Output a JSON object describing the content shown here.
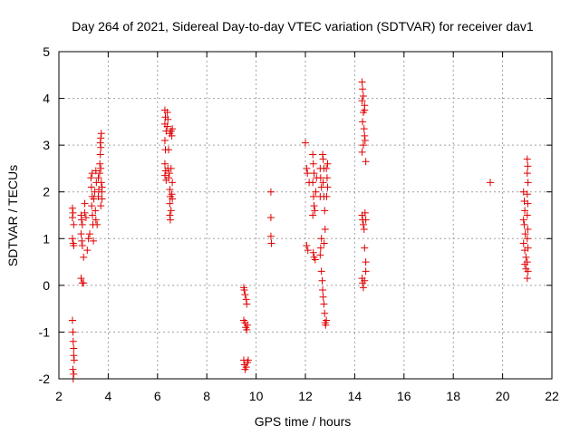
{
  "chart_data": {
    "type": "scatter",
    "title": "Day 264 of 2021, Sidereal Day-to-day VTEC variation (SDTVAR) for receiver dav1",
    "xlabel": "GPS time / hours",
    "ylabel": "SDTVAR / TECUs",
    "xlim": [
      2,
      22
    ],
    "ylim": [
      -2,
      5
    ],
    "xticks": [
      2,
      4,
      6,
      8,
      10,
      12,
      14,
      16,
      18,
      20,
      22
    ],
    "yticks": [
      -2,
      -1,
      0,
      1,
      2,
      3,
      4,
      5
    ],
    "xtick_labels": [
      "2",
      "4",
      "6",
      "8",
      "10",
      "12",
      "14",
      "16",
      "18",
      "20",
      "22"
    ],
    "ytick_labels": [
      "-2",
      "-1",
      "0",
      "1",
      "2",
      "3",
      "4",
      "5"
    ],
    "grid": true,
    "marker": "+",
    "marker_color": "#e00000",
    "series": [
      {
        "name": "dav1",
        "points": [
          [
            2.55,
            1.65
          ],
          [
            2.57,
            1.55
          ],
          [
            2.55,
            1.45
          ],
          [
            2.6,
            1.3
          ],
          [
            2.55,
            1.0
          ],
          [
            2.58,
            0.9
          ],
          [
            2.6,
            0.85
          ],
          [
            2.55,
            -0.75
          ],
          [
            2.57,
            -1.0
          ],
          [
            2.58,
            -1.2
          ],
          [
            2.6,
            -1.35
          ],
          [
            2.6,
            -1.5
          ],
          [
            2.62,
            -1.6
          ],
          [
            2.57,
            -1.8
          ],
          [
            2.6,
            -1.9
          ],
          [
            2.58,
            -2.0
          ],
          [
            2.9,
            1.5
          ],
          [
            2.92,
            1.4
          ],
          [
            2.95,
            1.3
          ],
          [
            2.9,
            1.1
          ],
          [
            2.93,
            0.95
          ],
          [
            2.95,
            0.85
          ],
          [
            2.9,
            0.15
          ],
          [
            2.95,
            0.05
          ],
          [
            3.0,
            0.05
          ],
          [
            3.0,
            0.6
          ],
          [
            3.05,
            1.75
          ],
          [
            3.05,
            1.55
          ],
          [
            3.1,
            1.45
          ],
          [
            3.15,
            0.75
          ],
          [
            3.2,
            1.0
          ],
          [
            3.25,
            1.1
          ],
          [
            3.3,
            2.3
          ],
          [
            3.32,
            2.1
          ],
          [
            3.35,
            1.9
          ],
          [
            3.33,
            1.7
          ],
          [
            3.36,
            1.5
          ],
          [
            3.38,
            1.3
          ],
          [
            3.4,
            0.95
          ],
          [
            3.35,
            2.4
          ],
          [
            3.42,
            1.85
          ],
          [
            3.45,
            2.0
          ],
          [
            3.48,
            1.6
          ],
          [
            3.5,
            1.4
          ],
          [
            3.52,
            2.2
          ],
          [
            3.55,
            1.3
          ],
          [
            3.5,
            2.45
          ],
          [
            3.6,
            1.9
          ],
          [
            3.62,
            2.05
          ],
          [
            3.6,
            2.3
          ],
          [
            3.65,
            2.4
          ],
          [
            3.66,
            2.6
          ],
          [
            3.68,
            2.8
          ],
          [
            3.7,
            2.95
          ],
          [
            3.68,
            3.05
          ],
          [
            3.7,
            3.15
          ],
          [
            3.72,
            3.25
          ],
          [
            3.7,
            2.5
          ],
          [
            3.72,
            2.2
          ],
          [
            3.74,
            2.0
          ],
          [
            3.75,
            1.85
          ],
          [
            3.7,
            1.7
          ],
          [
            3.75,
            2.1
          ],
          [
            6.3,
            3.75
          ],
          [
            6.32,
            3.6
          ],
          [
            6.3,
            3.45
          ],
          [
            6.35,
            3.3
          ],
          [
            6.3,
            3.1
          ],
          [
            6.32,
            2.9
          ],
          [
            6.3,
            2.6
          ],
          [
            6.33,
            2.45
          ],
          [
            6.3,
            2.35
          ],
          [
            6.35,
            2.25
          ],
          [
            6.4,
            3.7
          ],
          [
            6.42,
            3.55
          ],
          [
            6.4,
            3.4
          ],
          [
            6.45,
            2.9
          ],
          [
            6.42,
            2.5
          ],
          [
            6.45,
            2.3
          ],
          [
            6.5,
            2.05
          ],
          [
            6.52,
            1.9
          ],
          [
            6.5,
            1.75
          ],
          [
            6.55,
            1.6
          ],
          [
            6.5,
            1.5
          ],
          [
            6.52,
            1.4
          ],
          [
            6.55,
            3.3
          ],
          [
            6.58,
            3.2
          ],
          [
            6.6,
            3.35
          ],
          [
            6.55,
            2.5
          ],
          [
            6.6,
            2.2
          ],
          [
            6.58,
            1.95
          ],
          [
            6.6,
            1.85
          ],
          [
            6.48,
            2.4
          ],
          [
            6.5,
            3.25
          ],
          [
            9.5,
            -0.05
          ],
          [
            9.52,
            -0.1
          ],
          [
            9.55,
            -0.2
          ],
          [
            9.6,
            -0.3
          ],
          [
            9.62,
            -0.4
          ],
          [
            9.5,
            -0.75
          ],
          [
            9.55,
            -0.8
          ],
          [
            9.58,
            -0.9
          ],
          [
            9.62,
            -0.95
          ],
          [
            9.65,
            -0.85
          ],
          [
            9.5,
            -1.6
          ],
          [
            9.53,
            -1.7
          ],
          [
            9.55,
            -1.8
          ],
          [
            9.6,
            -1.75
          ],
          [
            9.65,
            -1.65
          ],
          [
            9.68,
            -1.6
          ],
          [
            10.6,
            2.0
          ],
          [
            10.6,
            1.45
          ],
          [
            10.6,
            1.05
          ],
          [
            10.62,
            0.9
          ],
          [
            12.0,
            3.05
          ],
          [
            12.05,
            2.5
          ],
          [
            12.08,
            2.4
          ],
          [
            12.05,
            0.85
          ],
          [
            12.1,
            0.75
          ],
          [
            12.15,
            2.2
          ],
          [
            12.3,
            2.8
          ],
          [
            12.32,
            2.6
          ],
          [
            12.35,
            2.4
          ],
          [
            12.3,
            2.2
          ],
          [
            12.33,
            1.9
          ],
          [
            12.35,
            1.7
          ],
          [
            12.38,
            1.6
          ],
          [
            12.3,
            1.5
          ],
          [
            12.32,
            0.7
          ],
          [
            12.35,
            0.6
          ],
          [
            12.4,
            0.55
          ],
          [
            12.42,
            2.0
          ],
          [
            12.45,
            2.3
          ],
          [
            12.6,
            2.5
          ],
          [
            12.62,
            2.3
          ],
          [
            12.65,
            2.1
          ],
          [
            12.6,
            1.9
          ],
          [
            12.65,
            1.0
          ],
          [
            12.62,
            0.8
          ],
          [
            12.6,
            0.65
          ],
          [
            12.7,
            2.8
          ],
          [
            12.72,
            2.7
          ],
          [
            12.75,
            2.5
          ],
          [
            12.72,
            2.2
          ],
          [
            12.75,
            1.9
          ],
          [
            12.78,
            1.6
          ],
          [
            12.8,
            1.2
          ],
          [
            12.76,
            0.9
          ],
          [
            12.65,
            0.3
          ],
          [
            12.68,
            0.1
          ],
          [
            12.7,
            -0.1
          ],
          [
            12.72,
            -0.25
          ],
          [
            12.75,
            -0.4
          ],
          [
            12.78,
            -0.6
          ],
          [
            12.8,
            -0.8
          ],
          [
            12.85,
            -0.75
          ],
          [
            12.82,
            -0.85
          ],
          [
            12.85,
            2.5
          ],
          [
            12.9,
            2.6
          ],
          [
            12.88,
            2.3
          ],
          [
            12.9,
            2.1
          ],
          [
            12.86,
            1.9
          ],
          [
            14.3,
            4.35
          ],
          [
            14.32,
            4.2
          ],
          [
            14.35,
            4.05
          ],
          [
            14.3,
            3.95
          ],
          [
            14.4,
            3.85
          ],
          [
            14.35,
            3.7
          ],
          [
            14.32,
            3.5
          ],
          [
            14.38,
            3.35
          ],
          [
            14.4,
            3.2
          ],
          [
            14.42,
            3.1
          ],
          [
            14.35,
            3.0
          ],
          [
            14.3,
            2.85
          ],
          [
            14.45,
            2.65
          ],
          [
            14.4,
            3.75
          ],
          [
            14.3,
            1.5
          ],
          [
            14.32,
            1.4
          ],
          [
            14.35,
            1.3
          ],
          [
            14.38,
            1.2
          ],
          [
            14.42,
            1.55
          ],
          [
            14.45,
            1.4
          ],
          [
            14.4,
            0.8
          ],
          [
            14.3,
            0.15
          ],
          [
            14.32,
            0.05
          ],
          [
            14.35,
            -0.05
          ],
          [
            14.4,
            0.1
          ],
          [
            14.45,
            0.3
          ],
          [
            14.45,
            0.5
          ],
          [
            19.5,
            2.2
          ],
          [
            20.85,
            2.0
          ],
          [
            20.88,
            1.8
          ],
          [
            20.9,
            1.6
          ],
          [
            20.85,
            1.4
          ],
          [
            20.88,
            1.3
          ],
          [
            20.92,
            1.1
          ],
          [
            20.85,
            0.9
          ],
          [
            20.9,
            0.75
          ],
          [
            20.95,
            0.6
          ],
          [
            20.9,
            0.45
          ],
          [
            20.95,
            0.35
          ],
          [
            21.0,
            2.7
          ],
          [
            21.02,
            2.55
          ],
          [
            21.0,
            2.4
          ],
          [
            21.03,
            2.2
          ],
          [
            21.0,
            1.95
          ],
          [
            21.02,
            1.75
          ],
          [
            21.0,
            1.5
          ],
          [
            21.02,
            1.2
          ],
          [
            21.0,
            1.0
          ],
          [
            21.03,
            0.8
          ],
          [
            21.0,
            0.5
          ],
          [
            21.03,
            0.3
          ],
          [
            21.0,
            0.15
          ]
        ]
      }
    ]
  }
}
